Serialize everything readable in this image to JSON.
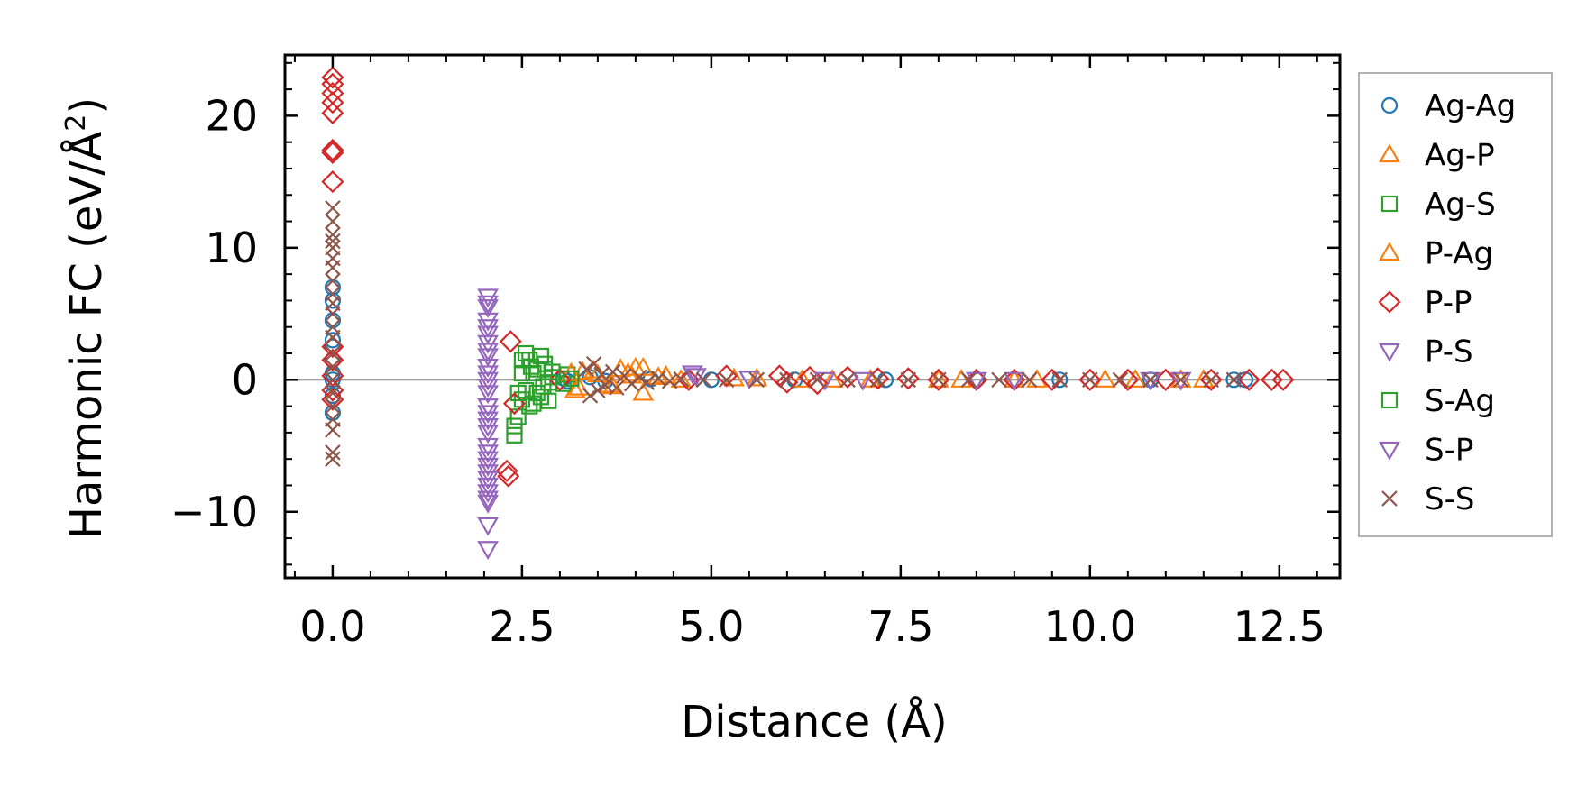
{
  "chart_data": {
    "type": "scatter",
    "xlabel": "Distance (Å)",
    "ylabel": "Harmonic FC (eV/Å²)",
    "ylabel_prefix": "Harmonic FC (eV/Å",
    "ylabel_sup": "2",
    "ylabel_suffix": ")",
    "xlim": [
      -0.63,
      13.3
    ],
    "ylim": [
      -15.0,
      24.6
    ],
    "xticks": [
      0.0,
      2.5,
      5.0,
      7.5,
      10.0,
      12.5
    ],
    "xtick_labels": [
      "0.0",
      "2.5",
      "5.0",
      "7.5",
      "10.0",
      "12.5"
    ],
    "yticks": [
      -10,
      0,
      10,
      20
    ],
    "ytick_labels": [
      "−10",
      "0",
      "10",
      "20"
    ],
    "hline_y": 0,
    "legend_position": "outside-right",
    "series": [
      {
        "name": "Ag-Ag",
        "marker": "circle",
        "color": "#1f77b4",
        "points": [
          [
            0,
            0
          ],
          [
            0,
            1.5
          ],
          [
            0,
            -1.2
          ],
          [
            0,
            3.0
          ],
          [
            0,
            2.5
          ],
          [
            0,
            -2.5
          ],
          [
            0,
            4.5
          ],
          [
            0,
            6.0
          ],
          [
            0,
            7.0
          ],
          [
            0,
            0.5
          ],
          [
            3.05,
            0.1
          ],
          [
            3.1,
            -0.1
          ],
          [
            3.4,
            0.2
          ],
          [
            3.6,
            -0.1
          ],
          [
            4.2,
            0.05
          ],
          [
            5.0,
            0.0
          ],
          [
            6.1,
            0.0
          ],
          [
            7.3,
            0.0
          ],
          [
            8.5,
            0.0
          ],
          [
            9.6,
            0.0
          ],
          [
            10.8,
            0.0
          ],
          [
            11.9,
            0.0
          ],
          [
            12.05,
            0.0
          ]
        ]
      },
      {
        "name": "Ag-P",
        "marker": "triangle-up",
        "color": "#ff7f0e",
        "points": [
          [
            3.2,
            -0.8
          ],
          [
            3.3,
            0.6
          ],
          [
            3.5,
            0.4
          ],
          [
            3.7,
            -0.5
          ],
          [
            3.8,
            0.8
          ],
          [
            3.95,
            0.3
          ],
          [
            4.1,
            -1.0
          ],
          [
            4.1,
            0.9
          ],
          [
            4.3,
            0.2
          ],
          [
            4.6,
            0.0
          ],
          [
            5.3,
            0.1
          ],
          [
            6.2,
            0.0
          ],
          [
            7.1,
            0.0
          ],
          [
            8.0,
            0.0
          ],
          [
            9.0,
            0.0
          ],
          [
            10.2,
            0.0
          ],
          [
            11.2,
            0.0
          ]
        ]
      },
      {
        "name": "Ag-S",
        "marker": "square",
        "color": "#2ca02c",
        "points": [
          [
            2.4,
            -3.5
          ],
          [
            2.4,
            -4.2
          ],
          [
            2.45,
            -2.8
          ],
          [
            2.5,
            1.5
          ],
          [
            2.5,
            -1.5
          ],
          [
            2.55,
            2.0
          ],
          [
            2.6,
            -2.0
          ],
          [
            2.62,
            1.0
          ],
          [
            2.65,
            0.5
          ],
          [
            2.7,
            -1.0
          ],
          [
            2.75,
            1.8
          ],
          [
            2.78,
            -0.5
          ],
          [
            2.8,
            0.8
          ],
          [
            2.85,
            -1.6
          ],
          [
            2.9,
            0.2
          ],
          [
            3.05,
            -0.3
          ],
          [
            3.1,
            0.4
          ]
        ]
      },
      {
        "name": "P-Ag",
        "marker": "triangle-up",
        "color": "#ff7f0e",
        "points": [
          [
            3.15,
            0.5
          ],
          [
            3.25,
            -0.6
          ],
          [
            3.45,
            0.7
          ],
          [
            3.65,
            -0.4
          ],
          [
            3.9,
            0.5
          ],
          [
            4.0,
            0.9
          ],
          [
            4.4,
            0.3
          ],
          [
            5.6,
            0.1
          ],
          [
            6.6,
            0.0
          ],
          [
            8.3,
            0.0
          ],
          [
            9.3,
            0.0
          ],
          [
            10.6,
            0.0
          ],
          [
            11.5,
            0.0
          ]
        ]
      },
      {
        "name": "P-P",
        "marker": "diamond",
        "color": "#d62728",
        "points": [
          [
            0,
            22.9
          ],
          [
            0,
            22.4
          ],
          [
            0,
            21.7
          ],
          [
            0,
            21.0
          ],
          [
            0,
            20.2
          ],
          [
            0,
            17.4
          ],
          [
            0,
            17.2
          ],
          [
            0,
            15.0
          ],
          [
            0,
            2.5
          ],
          [
            0,
            1.5
          ],
          [
            0,
            0.3
          ],
          [
            0,
            -0.8
          ],
          [
            0,
            -1.5
          ],
          [
            2.3,
            -6.9
          ],
          [
            2.32,
            -7.3
          ],
          [
            2.35,
            2.9
          ],
          [
            2.4,
            -1.8
          ],
          [
            3.0,
            0.0
          ],
          [
            4.7,
            0.0
          ],
          [
            5.2,
            0.3
          ],
          [
            5.9,
            0.3
          ],
          [
            6.0,
            -0.2
          ],
          [
            6.3,
            0.2
          ],
          [
            6.4,
            -0.3
          ],
          [
            6.8,
            0.2
          ],
          [
            7.2,
            0.1
          ],
          [
            7.6,
            0.1
          ],
          [
            8.0,
            0.0
          ],
          [
            8.5,
            0.0
          ],
          [
            9.0,
            0.0
          ],
          [
            9.5,
            0.0
          ],
          [
            10.0,
            0.0
          ],
          [
            10.5,
            0.0
          ],
          [
            11.0,
            0.0
          ],
          [
            11.6,
            0.0
          ],
          [
            12.1,
            0.0
          ],
          [
            12.4,
            0.0
          ],
          [
            12.55,
            0.0
          ]
        ]
      },
      {
        "name": "P-S",
        "marker": "triangle-down",
        "color": "#9467bd",
        "points": [
          [
            2.05,
            6.3
          ],
          [
            2.05,
            5.5
          ],
          [
            2.05,
            4.5
          ],
          [
            2.05,
            3.5
          ],
          [
            2.05,
            2.8
          ],
          [
            2.05,
            1.8
          ],
          [
            2.05,
            1.0
          ],
          [
            2.05,
            0.0
          ],
          [
            2.05,
            -1.0
          ],
          [
            2.05,
            -2.0
          ],
          [
            2.05,
            -3.0
          ],
          [
            2.05,
            -4.0
          ],
          [
            2.05,
            -5.0
          ],
          [
            2.05,
            -6.0
          ],
          [
            2.05,
            -7.0
          ],
          [
            2.05,
            -8.0
          ],
          [
            2.05,
            -9.0
          ],
          [
            2.05,
            -11.0
          ],
          [
            2.05,
            -12.8
          ],
          [
            4.75,
            0.5
          ],
          [
            5.5,
            0.1
          ],
          [
            7.0,
            0.0
          ],
          [
            9.0,
            0.0
          ],
          [
            11.2,
            0.0
          ]
        ]
      },
      {
        "name": "S-Ag",
        "marker": "square",
        "color": "#2ca02c",
        "points": [
          [
            2.45,
            -1.0
          ],
          [
            2.5,
            0.5
          ],
          [
            2.55,
            -0.8
          ],
          [
            2.6,
            1.5
          ],
          [
            2.65,
            -1.8
          ],
          [
            2.7,
            0.8
          ],
          [
            2.75,
            -1.3
          ],
          [
            2.8,
            1.2
          ],
          [
            2.85,
            -0.2
          ],
          [
            2.9,
            0.6
          ],
          [
            3.15,
            0.1
          ]
        ]
      },
      {
        "name": "S-P",
        "marker": "triangle-down",
        "color": "#9467bd",
        "points": [
          [
            2.05,
            5.8
          ],
          [
            2.05,
            4.0
          ],
          [
            2.05,
            2.2
          ],
          [
            2.05,
            0.5
          ],
          [
            2.05,
            -0.5
          ],
          [
            2.05,
            -2.5
          ],
          [
            2.05,
            -3.5
          ],
          [
            2.05,
            -5.5
          ],
          [
            2.05,
            -6.5
          ],
          [
            2.05,
            -7.5
          ],
          [
            2.05,
            -8.5
          ],
          [
            2.05,
            -9.3
          ],
          [
            4.8,
            0.3
          ],
          [
            6.5,
            0.0
          ],
          [
            8.5,
            0.0
          ],
          [
            10.8,
            0.0
          ]
        ]
      },
      {
        "name": "S-S",
        "marker": "x",
        "color": "#8c564b",
        "points": [
          [
            0,
            13.0
          ],
          [
            0,
            12.0
          ],
          [
            0,
            11.0
          ],
          [
            0,
            10.5
          ],
          [
            0,
            10.0
          ],
          [
            0,
            9.2
          ],
          [
            0,
            8.5
          ],
          [
            0,
            7.5
          ],
          [
            0,
            6.5
          ],
          [
            0,
            5.8
          ],
          [
            0,
            5.0
          ],
          [
            0,
            4.0
          ],
          [
            0,
            3.2
          ],
          [
            0,
            2.0
          ],
          [
            0,
            1.0
          ],
          [
            0,
            0.0
          ],
          [
            0,
            -1.0
          ],
          [
            0,
            -2.0
          ],
          [
            0,
            -3.0
          ],
          [
            0,
            -3.8
          ],
          [
            0,
            -5.5
          ],
          [
            0,
            -6.0
          ],
          [
            3.35,
            0.8
          ],
          [
            3.4,
            -1.2
          ],
          [
            3.45,
            1.2
          ],
          [
            3.5,
            -0.8
          ],
          [
            3.55,
            0.4
          ],
          [
            3.6,
            -0.4
          ],
          [
            3.7,
            0.6
          ],
          [
            3.75,
            -0.6
          ],
          [
            3.85,
            0.3
          ],
          [
            3.95,
            -0.3
          ],
          [
            4.05,
            0.2
          ],
          [
            4.15,
            -0.2
          ],
          [
            4.3,
            0.1
          ],
          [
            4.45,
            -0.1
          ],
          [
            4.6,
            0.05
          ],
          [
            4.9,
            0.0
          ],
          [
            5.2,
            0.0
          ],
          [
            5.6,
            0.0
          ],
          [
            6.0,
            0.0
          ],
          [
            6.4,
            0.0
          ],
          [
            6.8,
            0.0
          ],
          [
            7.2,
            0.0
          ],
          [
            7.6,
            0.0
          ],
          [
            8.0,
            0.0
          ],
          [
            8.4,
            0.0
          ],
          [
            8.8,
            0.0
          ],
          [
            9.2,
            0.0
          ],
          [
            9.6,
            0.0
          ],
          [
            10.0,
            0.0
          ],
          [
            10.4,
            0.0
          ],
          [
            10.8,
            0.0
          ],
          [
            11.2,
            0.0
          ],
          [
            11.6,
            0.0
          ],
          [
            11.9,
            0.0
          ]
        ]
      }
    ]
  }
}
